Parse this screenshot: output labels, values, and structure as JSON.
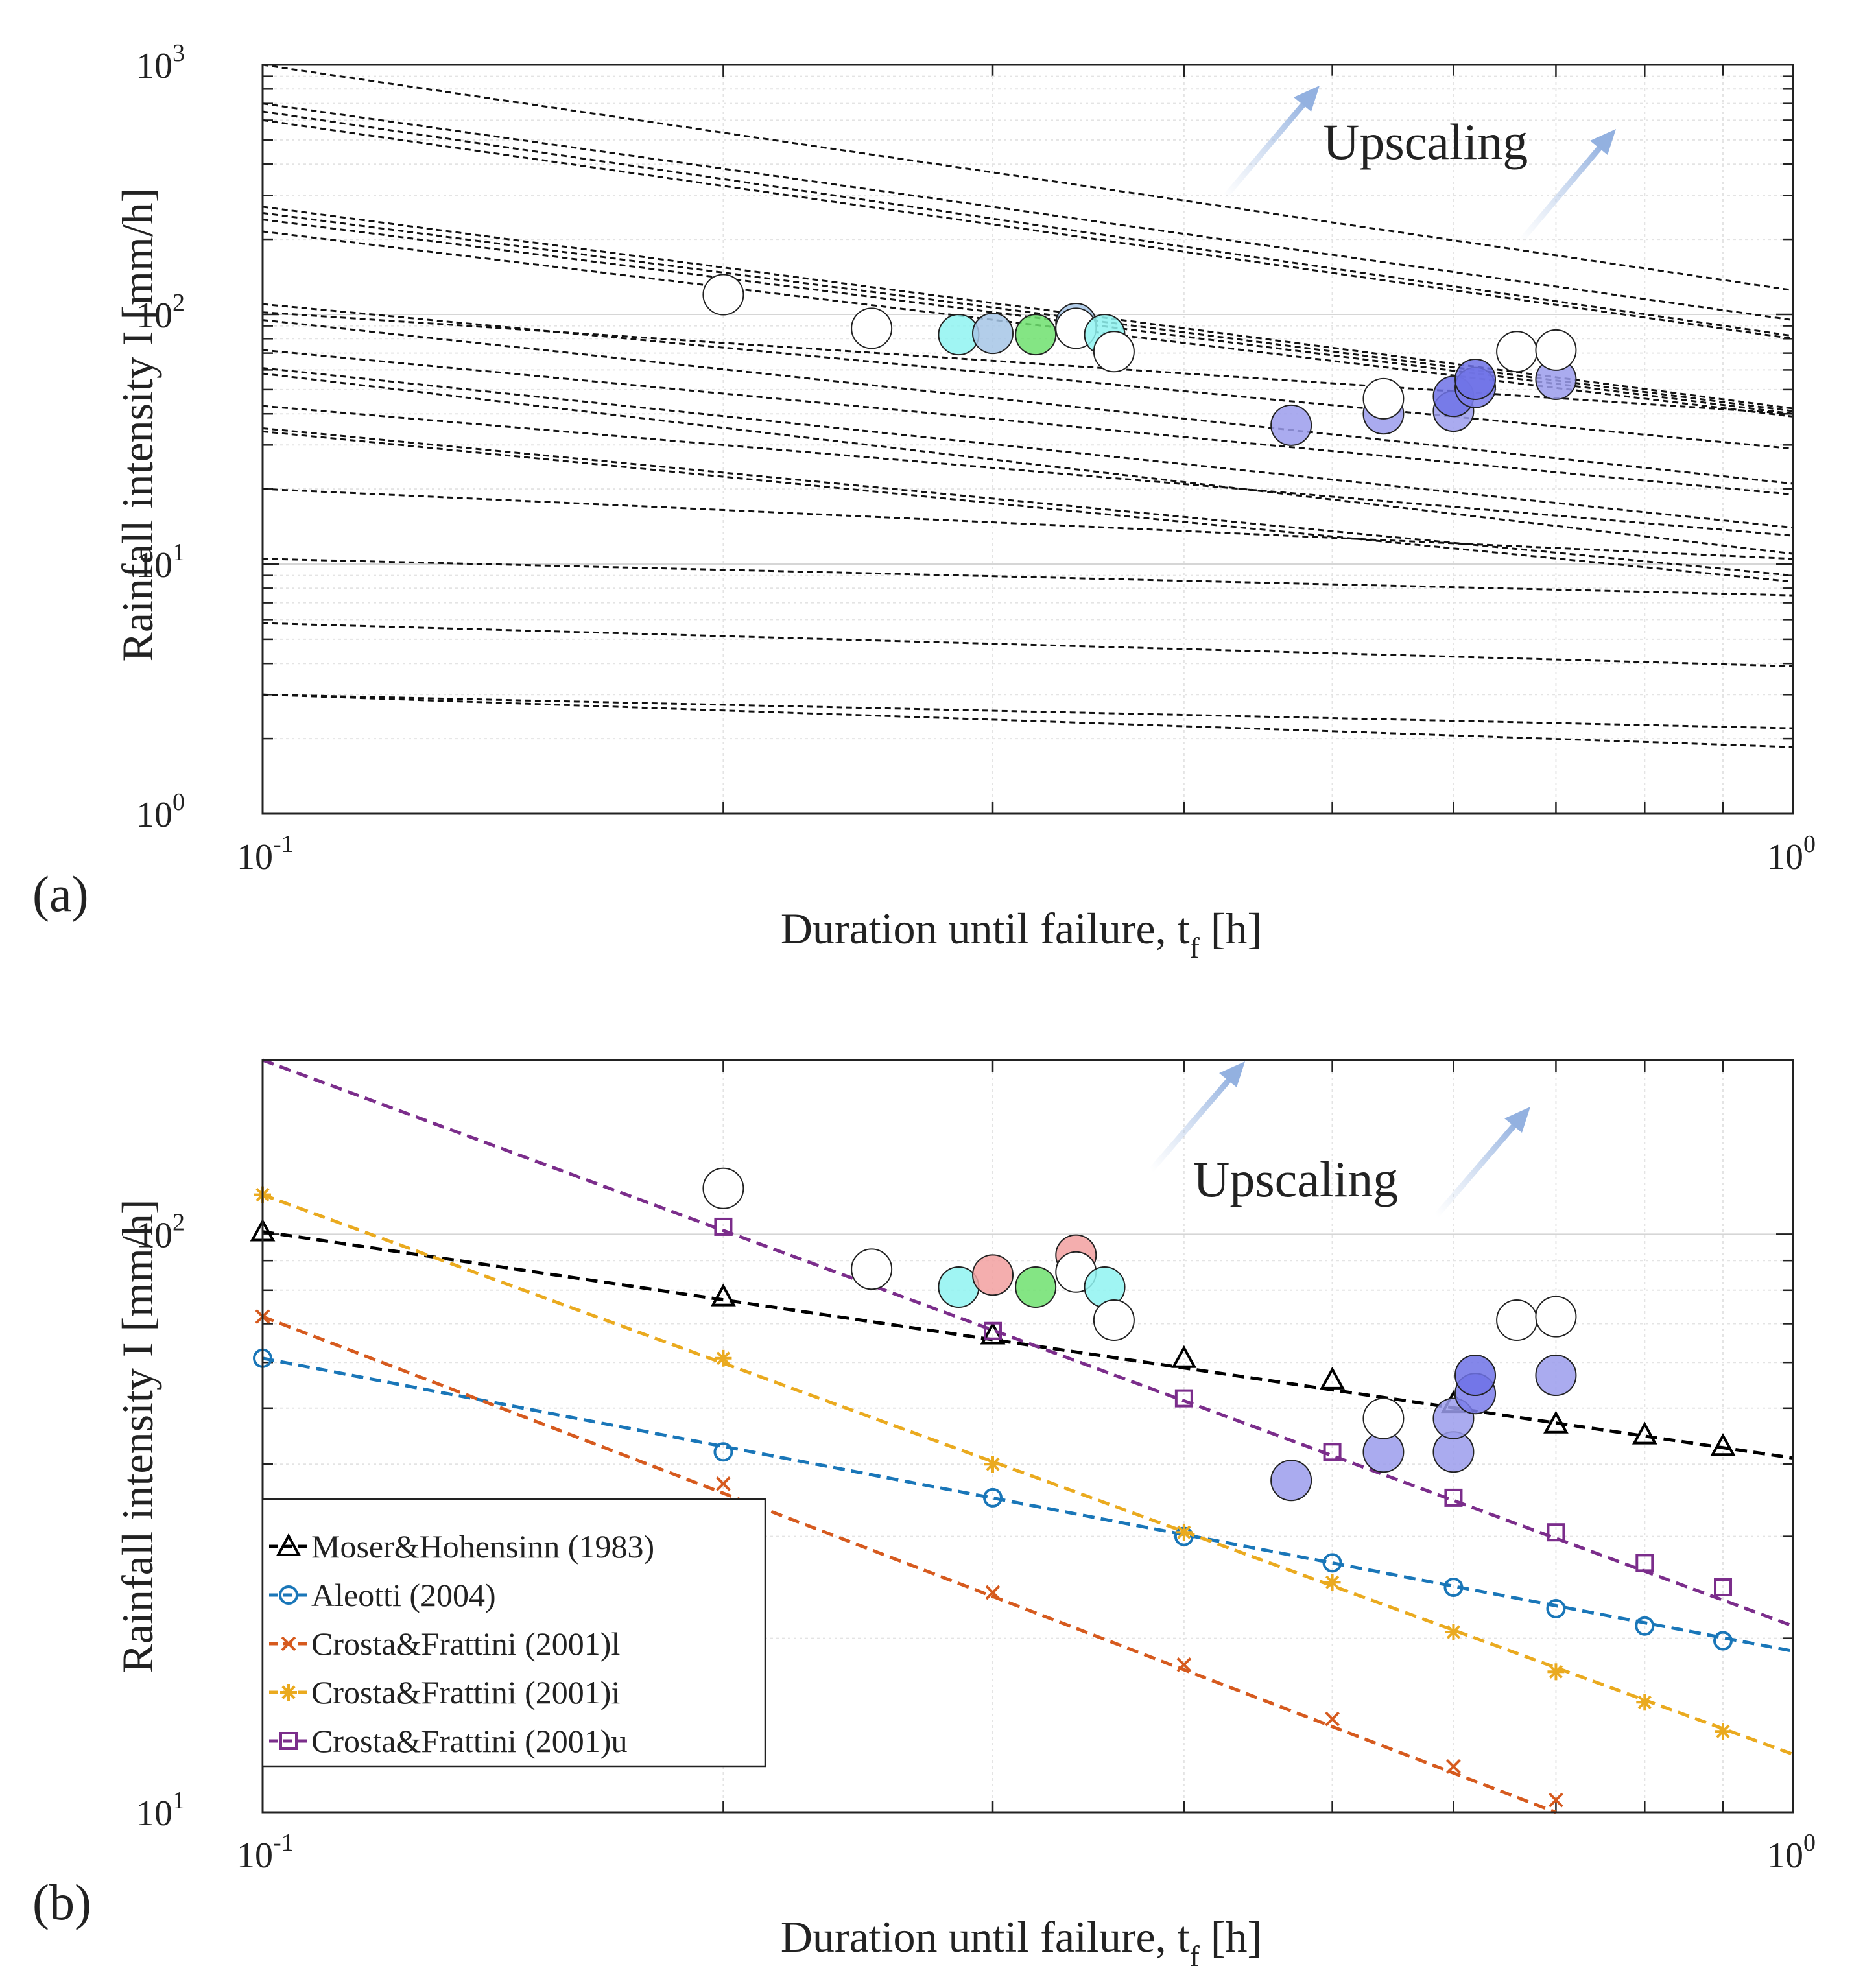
{
  "panels": [
    {
      "panel_label": "(a)",
      "annotation": "Upscaling",
      "chart_data": {
        "type": "scatter",
        "xscale": "log",
        "yscale": "log",
        "xlim": [
          0.1,
          1
        ],
        "ylim": [
          1,
          1000
        ],
        "xlabel": "Duration until failure, t",
        "xlabel_sub": "f",
        "xlabel_unit": " [h]",
        "ylabel": "Rainfall intensity I [mm/h]",
        "xticks": [
          {
            "base": "10",
            "exp": "-1"
          },
          {
            "base": "10",
            "exp": "0"
          }
        ],
        "yticks": [
          {
            "base": "10",
            "exp": "0"
          },
          {
            "base": "10",
            "exp": "1"
          },
          {
            "base": "10",
            "exp": "2"
          },
          {
            "base": "10",
            "exp": "3"
          }
        ],
        "grid": true,
        "threshold_lines": [
          {
            "x0": 0.1,
            "y0": 1000,
            "x1": 1,
            "y1": 125
          },
          {
            "x0": 0.1,
            "y0": 700,
            "x1": 1,
            "y1": 95
          },
          {
            "x0": 0.1,
            "y0": 650,
            "x1": 1,
            "y1": 82
          },
          {
            "x0": 0.1,
            "y0": 600,
            "x1": 1,
            "y1": 80
          },
          {
            "x0": 0.1,
            "y0": 270,
            "x1": 1,
            "y1": 42
          },
          {
            "x0": 0.1,
            "y0": 255,
            "x1": 1,
            "y1": 41
          },
          {
            "x0": 0.1,
            "y0": 240,
            "x1": 1,
            "y1": 40
          },
          {
            "x0": 0.1,
            "y0": 215,
            "x1": 1,
            "y1": 39
          },
          {
            "x0": 0.1,
            "y0": 110,
            "x1": 1,
            "y1": 29
          },
          {
            "x0": 0.1,
            "y0": 102,
            "x1": 1,
            "y1": 40
          },
          {
            "x0": 0.1,
            "y0": 95,
            "x1": 1,
            "y1": 21
          },
          {
            "x0": 0.1,
            "y0": 72,
            "x1": 1,
            "y1": 19
          },
          {
            "x0": 0.1,
            "y0": 61,
            "x1": 1,
            "y1": 14
          },
          {
            "x0": 0.1,
            "y0": 58,
            "x1": 1,
            "y1": 11
          },
          {
            "x0": 0.1,
            "y0": 43,
            "x1": 1,
            "y1": 13
          },
          {
            "x0": 0.1,
            "y0": 35,
            "x1": 1,
            "y1": 9
          },
          {
            "x0": 0.1,
            "y0": 34,
            "x1": 1,
            "y1": 8.5
          },
          {
            "x0": 0.1,
            "y0": 20,
            "x1": 1,
            "y1": 10.5
          },
          {
            "x0": 0.1,
            "y0": 10.5,
            "x1": 1,
            "y1": 7.5
          },
          {
            "x0": 0.1,
            "y0": 5.8,
            "x1": 1,
            "y1": 3.9
          },
          {
            "x0": 0.1,
            "y0": 3.0,
            "x1": 1,
            "y1": 2.2
          },
          {
            "x0": 0.1,
            "y0": 3.0,
            "x1": 1,
            "y1": 1.85
          }
        ],
        "points": [
          {
            "x": 0.2,
            "y": 120,
            "color": "#ffffff"
          },
          {
            "x": 0.25,
            "y": 88,
            "color": "#ffffff"
          },
          {
            "x": 0.285,
            "y": 83,
            "color": "#8ff3f1"
          },
          {
            "x": 0.3,
            "y": 84,
            "color": "#a6c6e6"
          },
          {
            "x": 0.32,
            "y": 83,
            "color": "#6ee06e"
          },
          {
            "x": 0.34,
            "y": 92,
            "color": "#a6c6e6"
          },
          {
            "x": 0.34,
            "y": 88,
            "color": "#ffffff"
          },
          {
            "x": 0.355,
            "y": 83,
            "color": "#8ff3f1"
          },
          {
            "x": 0.36,
            "y": 71,
            "color": "#ffffff"
          },
          {
            "x": 0.47,
            "y": 36,
            "color": "#9b9cec"
          },
          {
            "x": 0.54,
            "y": 40,
            "color": "#9b9cec"
          },
          {
            "x": 0.54,
            "y": 46,
            "color": "#ffffff"
          },
          {
            "x": 0.6,
            "y": 41,
            "color": "#9b9cec"
          },
          {
            "x": 0.6,
            "y": 47,
            "color": "#6f72e6"
          },
          {
            "x": 0.62,
            "y": 51,
            "color": "#7a7cea"
          },
          {
            "x": 0.62,
            "y": 55,
            "color": "#6f72e6"
          },
          {
            "x": 0.66,
            "y": 71,
            "color": "#ffffff"
          },
          {
            "x": 0.7,
            "y": 55,
            "color": "#9b9cec"
          },
          {
            "x": 0.7,
            "y": 72,
            "color": "#ffffff"
          }
        ]
      }
    },
    {
      "panel_label": "(b)",
      "annotation": "Upscaling",
      "chart_data": {
        "type": "line",
        "xscale": "log",
        "yscale": "log",
        "xlim": [
          0.1,
          1
        ],
        "ylim": [
          10,
          200
        ],
        "xlabel": "Duration until failure, t",
        "xlabel_sub": "f",
        "xlabel_unit": " [h]",
        "ylabel": "Rainfall intensity I [mm/h]",
        "xticks": [
          {
            "base": "10",
            "exp": "-1"
          },
          {
            "base": "10",
            "exp": "0"
          }
        ],
        "yticks": [
          {
            "base": "10",
            "exp": "1"
          },
          {
            "base": "10",
            "exp": "2"
          }
        ],
        "grid": true,
        "legend_position": "bottom-left",
        "series": [
          {
            "name": "Moser&Hohensinn (1983)",
            "color": "#000000",
            "marker": "triangle",
            "line": [
              [
                0.1,
                101
              ],
              [
                1,
                41
              ]
            ],
            "markers": [
              [
                0.1,
                101
              ],
              [
                0.2,
                78
              ],
              [
                0.3,
                67
              ],
              [
                0.4,
                61
              ],
              [
                0.5,
                56
              ],
              [
                0.6,
                51
              ],
              [
                0.7,
                47
              ],
              [
                0.8,
                45
              ],
              [
                0.9,
                43
              ]
            ]
          },
          {
            "name": "Aleotti (2004)",
            "color": "#1976b8",
            "marker": "circle",
            "line": [
              [
                0.1,
                61
              ],
              [
                1,
                19
              ]
            ],
            "markers": [
              [
                0.1,
                61
              ],
              [
                0.2,
                42
              ],
              [
                0.3,
                35
              ],
              [
                0.4,
                30
              ],
              [
                0.5,
                27
              ],
              [
                0.6,
                24.5
              ],
              [
                0.7,
                22.5
              ],
              [
                0.8,
                21
              ],
              [
                0.9,
                19.8
              ]
            ]
          },
          {
            "name": "Crosta&Frattini (2001)l",
            "color": "#d65a1e",
            "marker": "x",
            "line": [
              [
                0.1,
                72
              ],
              [
                0.7,
                10
              ]
            ],
            "markers": [
              [
                0.1,
                72
              ],
              [
                0.2,
                37
              ],
              [
                0.3,
                24
              ],
              [
                0.4,
                18
              ],
              [
                0.5,
                14.5
              ],
              [
                0.6,
                12
              ],
              [
                0.7,
                10.5
              ]
            ]
          },
          {
            "name": "Crosta&Frattini (2001)i",
            "color": "#eaaa1f",
            "marker": "star",
            "line": [
              [
                0.1,
                117
              ],
              [
                1,
                12.6
              ]
            ],
            "markers": [
              [
                0.1,
                117
              ],
              [
                0.2,
                61
              ],
              [
                0.3,
                40
              ],
              [
                0.4,
                30.5
              ],
              [
                0.5,
                25
              ],
              [
                0.6,
                20.5
              ],
              [
                0.7,
                17.5
              ],
              [
                0.8,
                15.5
              ],
              [
                0.9,
                13.8
              ]
            ]
          },
          {
            "name": "Crosta&Frattini (2001)u",
            "color": "#7b2d8b",
            "marker": "square",
            "line": [
              [
                0.1,
                200
              ],
              [
                1,
                21
              ]
            ],
            "markers": [
              [
                0.2,
                103
              ],
              [
                0.3,
                68
              ],
              [
                0.4,
                52
              ],
              [
                0.5,
                42
              ],
              [
                0.6,
                35
              ],
              [
                0.7,
                30.5
              ],
              [
                0.8,
                27
              ],
              [
                0.9,
                24.5
              ]
            ]
          }
        ],
        "points": [
          {
            "x": 0.2,
            "y": 120,
            "color": "#ffffff"
          },
          {
            "x": 0.25,
            "y": 87,
            "color": "#ffffff"
          },
          {
            "x": 0.285,
            "y": 81,
            "color": "#8ff3f1"
          },
          {
            "x": 0.3,
            "y": 85,
            "color": "#f2a0a0"
          },
          {
            "x": 0.32,
            "y": 81,
            "color": "#6ee06e"
          },
          {
            "x": 0.34,
            "y": 92,
            "color": "#f2a0a0"
          },
          {
            "x": 0.34,
            "y": 86,
            "color": "#ffffff"
          },
          {
            "x": 0.355,
            "y": 81,
            "color": "#8ff3f1"
          },
          {
            "x": 0.36,
            "y": 71,
            "color": "#ffffff"
          },
          {
            "x": 0.47,
            "y": 37.5,
            "color": "#9b9cec"
          },
          {
            "x": 0.54,
            "y": 42,
            "color": "#9b9cec"
          },
          {
            "x": 0.54,
            "y": 48,
            "color": "#ffffff"
          },
          {
            "x": 0.6,
            "y": 42,
            "color": "#9b9cec"
          },
          {
            "x": 0.6,
            "y": 48,
            "color": "#9b9cec"
          },
          {
            "x": 0.62,
            "y": 53,
            "color": "#7a7cea"
          },
          {
            "x": 0.62,
            "y": 57,
            "color": "#6f72e6"
          },
          {
            "x": 0.66,
            "y": 71,
            "color": "#ffffff"
          },
          {
            "x": 0.7,
            "y": 57,
            "color": "#9b9cec"
          },
          {
            "x": 0.7,
            "y": 72,
            "color": "#ffffff"
          }
        ]
      }
    }
  ]
}
